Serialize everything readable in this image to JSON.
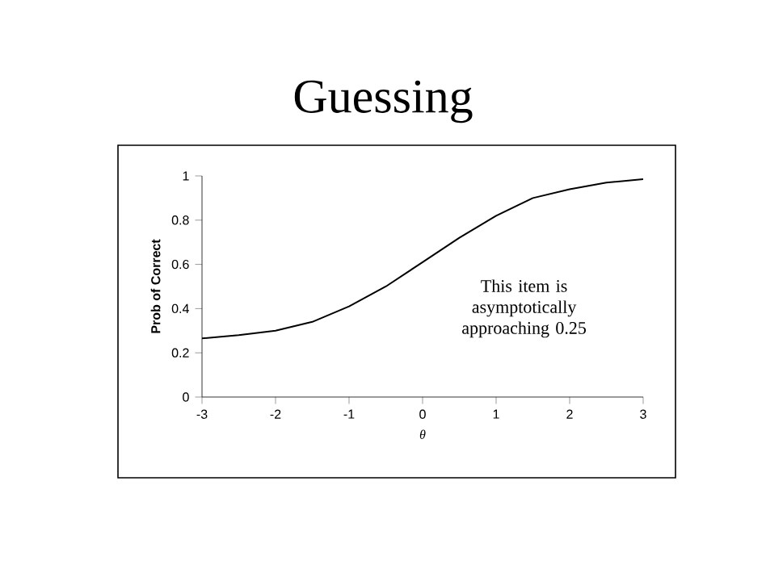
{
  "chart_data": {
    "type": "line",
    "title": "Guessing",
    "xlabel": "θ",
    "ylabel": "Prob of Correct",
    "x": [
      -3,
      -2.5,
      -2,
      -1.5,
      -1,
      -0.5,
      0,
      0.5,
      1,
      1.5,
      2,
      2.5,
      3
    ],
    "series": [
      {
        "color": "#000000",
        "values": [
          0.265,
          0.28,
          0.3,
          0.34,
          0.41,
          0.5,
          0.61,
          0.72,
          0.82,
          0.9,
          0.94,
          0.97,
          0.985
        ]
      }
    ],
    "xlim": [
      -3,
      3
    ],
    "ylim": [
      0,
      1
    ],
    "xticks": [
      -3,
      -2,
      -1,
      0,
      1,
      2,
      3
    ],
    "yticks": [
      0,
      0.2,
      0.4,
      0.6,
      0.8,
      1
    ],
    "annotations": [
      "This item is asymptotically approaching 0.25"
    ],
    "grid": false,
    "marker": "none",
    "line_style": "solid"
  }
}
